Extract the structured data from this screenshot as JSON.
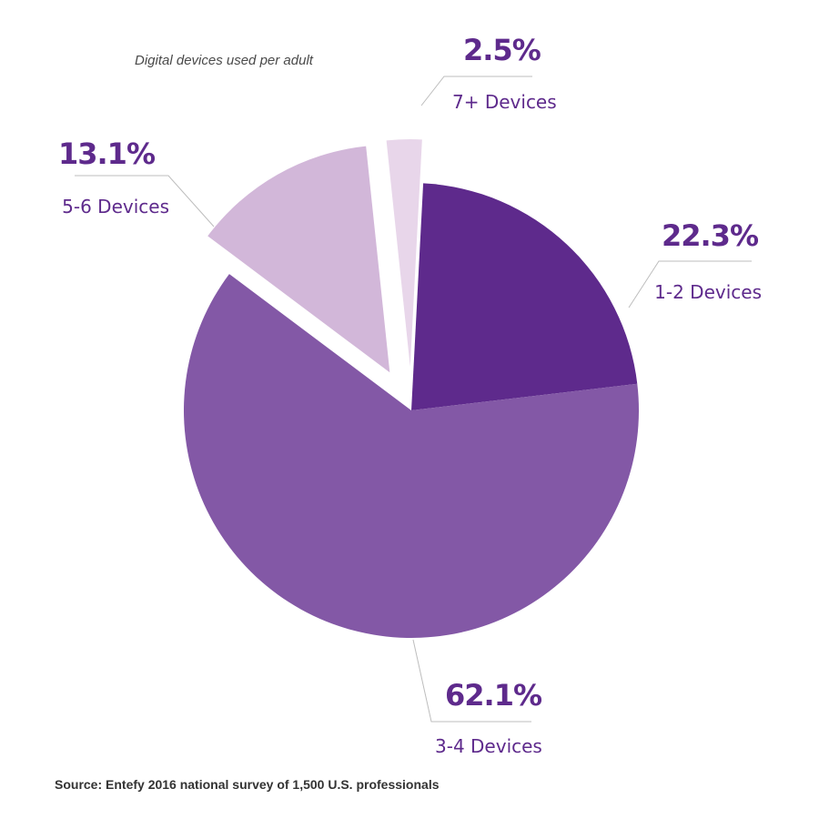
{
  "chart_data": {
    "type": "pie",
    "title": "Digital devices used per adult",
    "source": "Source: Entefy 2016 national survey of 1,500 U.S. professionals",
    "slices": [
      {
        "label": "1-2 Devices",
        "value": 22.3,
        "value_label": "22.3%",
        "color": "#5e2a8c",
        "exploded": false
      },
      {
        "label": "3-4 Devices",
        "value": 62.1,
        "value_label": "62.1%",
        "color": "#8358a6",
        "exploded": false
      },
      {
        "label": "5-6 Devices",
        "value": 13.1,
        "value_label": "13.1%",
        "color": "#d2b7d9",
        "exploded": true
      },
      {
        "label": "7+ Devices",
        "value": 2.5,
        "value_label": "2.5%",
        "color": "#e8d6ea",
        "exploded": true
      }
    ],
    "label_color": "#5e2a8c"
  }
}
